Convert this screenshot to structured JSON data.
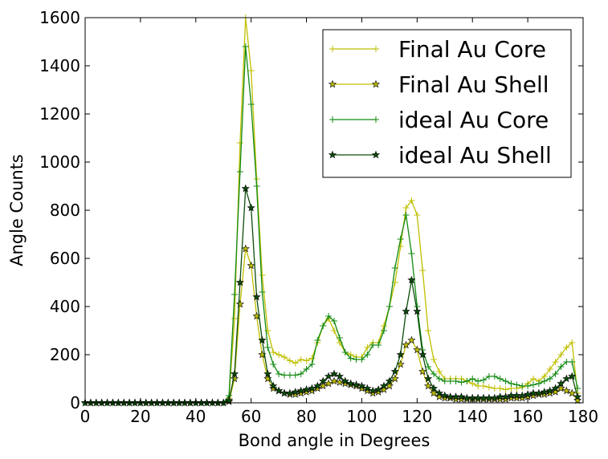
{
  "chart_data": {
    "type": "line",
    "title": "",
    "xlabel": "Bond angle in Degrees",
    "ylabel": "Angle Counts",
    "xlim": [
      0,
      180
    ],
    "ylim": [
      0,
      1600
    ],
    "xticks": [
      0,
      20,
      40,
      60,
      80,
      100,
      120,
      140,
      160,
      180
    ],
    "yticks": [
      0,
      200,
      400,
      600,
      800,
      1000,
      1200,
      1400,
      1600
    ],
    "grid": false,
    "legend_position": "top-right",
    "x": [
      0,
      2,
      4,
      6,
      8,
      10,
      12,
      14,
      16,
      18,
      20,
      22,
      24,
      26,
      28,
      30,
      32,
      34,
      36,
      38,
      40,
      42,
      44,
      46,
      48,
      50,
      52,
      54,
      56,
      58,
      60,
      62,
      64,
      66,
      68,
      70,
      72,
      74,
      76,
      78,
      80,
      82,
      84,
      86,
      88,
      90,
      92,
      94,
      96,
      98,
      100,
      102,
      104,
      106,
      108,
      110,
      112,
      114,
      116,
      118,
      120,
      122,
      124,
      126,
      128,
      130,
      132,
      134,
      136,
      138,
      140,
      142,
      144,
      146,
      148,
      150,
      152,
      154,
      156,
      158,
      160,
      162,
      164,
      166,
      168,
      170,
      172,
      174,
      176,
      178
    ],
    "series": [
      {
        "name": "Final Au Core",
        "color": "#bfbf00",
        "marker": "plus",
        "values": [
          0,
          0,
          0,
          0,
          0,
          0,
          0,
          0,
          0,
          0,
          0,
          0,
          0,
          0,
          0,
          0,
          0,
          0,
          0,
          0,
          0,
          0,
          0,
          0,
          0,
          0,
          20,
          350,
          1080,
          1600,
          1380,
          930,
          530,
          300,
          210,
          200,
          190,
          175,
          165,
          180,
          175,
          185,
          250,
          320,
          350,
          300,
          250,
          210,
          200,
          190,
          190,
          230,
          250,
          250,
          320,
          400,
          500,
          650,
          810,
          840,
          780,
          550,
          300,
          180,
          130,
          100,
          100,
          100,
          100,
          90,
          80,
          70,
          70,
          65,
          60,
          60,
          55,
          60,
          60,
          65,
          80,
          100,
          90,
          110,
          140,
          170,
          200,
          230,
          250,
          40
        ]
      },
      {
        "name": "Final Au Shell",
        "color": "#bfbf00",
        "marker": "star",
        "values": [
          0,
          0,
          0,
          0,
          0,
          0,
          0,
          0,
          0,
          0,
          0,
          0,
          0,
          0,
          0,
          0,
          0,
          0,
          0,
          0,
          0,
          0,
          0,
          0,
          0,
          0,
          5,
          100,
          410,
          640,
          570,
          360,
          200,
          100,
          60,
          50,
          40,
          35,
          35,
          40,
          45,
          50,
          60,
          70,
          80,
          90,
          85,
          80,
          75,
          70,
          60,
          50,
          40,
          45,
          55,
          70,
          100,
          160,
          240,
          260,
          220,
          130,
          70,
          40,
          25,
          20,
          20,
          15,
          15,
          15,
          15,
          15,
          15,
          15,
          15,
          15,
          15,
          20,
          20,
          20,
          25,
          30,
          35,
          35,
          40,
          45,
          60,
          50,
          40,
          10
        ]
      },
      {
        "name": "ideal Au Core",
        "color": "#128a12",
        "marker": "plus",
        "values": [
          0,
          0,
          0,
          0,
          0,
          0,
          0,
          0,
          0,
          0,
          0,
          0,
          0,
          0,
          0,
          0,
          0,
          0,
          0,
          0,
          0,
          0,
          0,
          0,
          0,
          0,
          30,
          450,
          960,
          1480,
          1240,
          900,
          460,
          230,
          160,
          120,
          115,
          115,
          115,
          120,
          140,
          160,
          260,
          320,
          360,
          340,
          270,
          210,
          185,
          180,
          180,
          200,
          240,
          240,
          300,
          400,
          560,
          680,
          780,
          620,
          400,
          220,
          150,
          120,
          100,
          90,
          90,
          90,
          85,
          90,
          100,
          90,
          95,
          110,
          110,
          100,
          90,
          80,
          75,
          70,
          70,
          75,
          80,
          90,
          100,
          120,
          150,
          170,
          170,
          60
        ]
      },
      {
        "name": "ideal Au Shell",
        "color": "#0b4d0b",
        "marker": "star",
        "values": [
          0,
          0,
          0,
          0,
          0,
          0,
          0,
          0,
          0,
          0,
          0,
          0,
          0,
          0,
          0,
          0,
          0,
          0,
          0,
          0,
          0,
          0,
          0,
          0,
          0,
          0,
          10,
          120,
          500,
          890,
          810,
          440,
          260,
          120,
          70,
          50,
          40,
          40,
          45,
          50,
          55,
          60,
          70,
          90,
          110,
          120,
          110,
          90,
          80,
          75,
          70,
          60,
          50,
          55,
          70,
          90,
          130,
          200,
          380,
          510,
          380,
          200,
          100,
          60,
          40,
          30,
          25,
          25,
          25,
          20,
          20,
          20,
          20,
          20,
          20,
          25,
          25,
          30,
          30,
          30,
          35,
          40,
          40,
          45,
          50,
          60,
          80,
          100,
          110,
          25
        ]
      }
    ]
  }
}
